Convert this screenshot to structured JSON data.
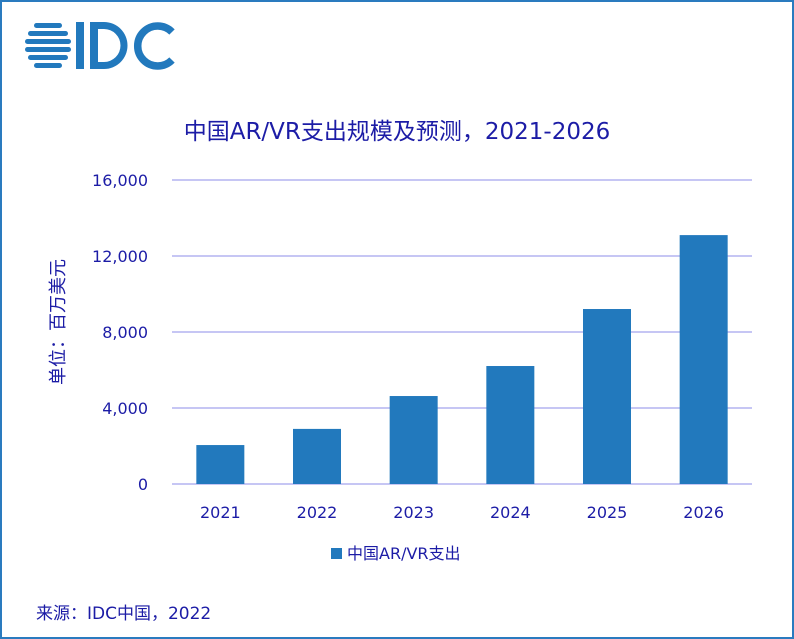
{
  "logo": {
    "text": "IDC",
    "color": "#2279bd"
  },
  "chart_data": {
    "type": "bar",
    "title": "中国AR/VR支出规模及预测，2021-2026",
    "ylabel": "单位：百万美元",
    "xlabel": "",
    "categories": [
      "2021",
      "2022",
      "2023",
      "2024",
      "2025",
      "2026"
    ],
    "series": [
      {
        "name": "中国AR/VR支出",
        "values": [
          2050,
          2900,
          4630,
          6210,
          9210,
          13100
        ],
        "color": "#2279bd"
      }
    ],
    "ylim": [
      0,
      16000
    ],
    "yticks": [
      0,
      4000,
      8000,
      12000,
      16000
    ],
    "ytick_labels": [
      "0",
      "4,000",
      "8,000",
      "12,000",
      "16,000"
    ],
    "grid": true,
    "legend": "bottom",
    "gridline_color": "#b4b4f0",
    "text_color": "#1c1ca6"
  },
  "source": "来源：IDC中国，2022"
}
